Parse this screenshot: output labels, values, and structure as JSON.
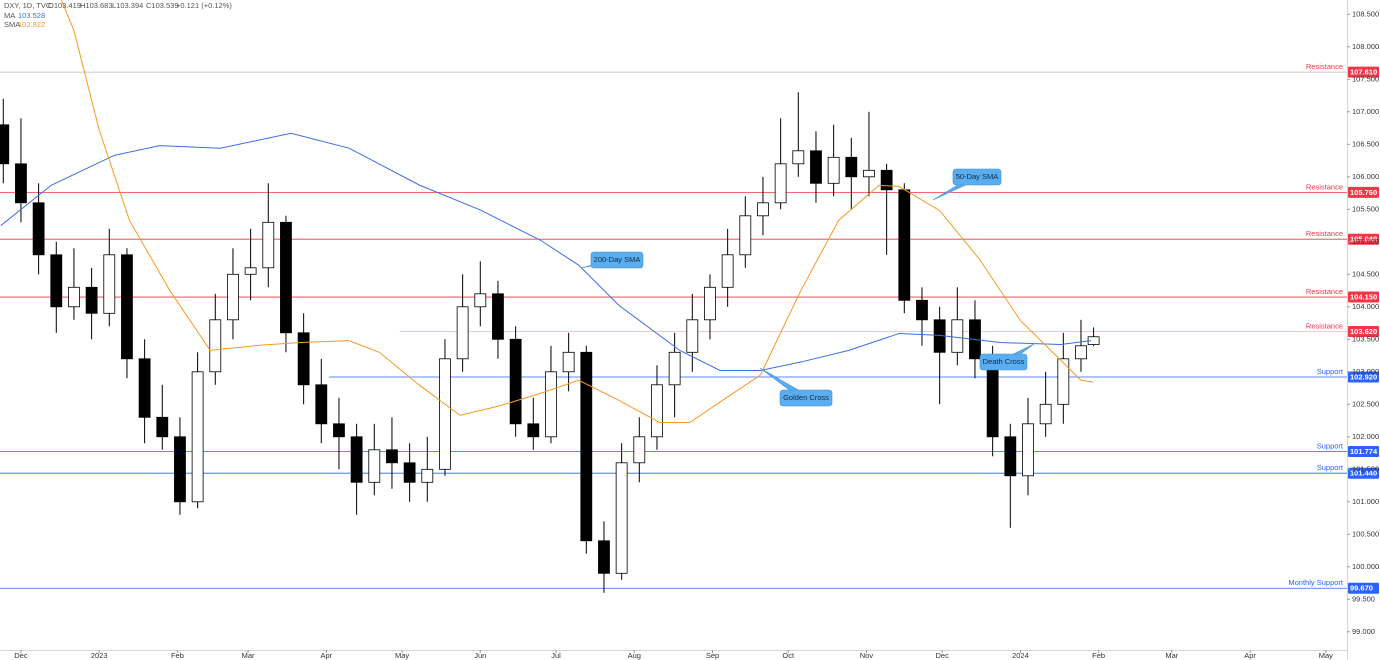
{
  "chart_data": {
    "type": "candlestick",
    "header": {
      "symbol": "DXY, 1D, TVC",
      "open": "O103.419",
      "high": "H103.683",
      "low": "L103.394",
      "close": "C103.539",
      "change": "+0.121 (+0.12%)"
    },
    "xlim": [
      -8.3,
      525.4
    ],
    "ylim": [
      98.72,
      108.72
    ],
    "xticks": [
      {
        "value": 0,
        "label": "Dec"
      },
      {
        "value": 31,
        "label": "2023"
      },
      {
        "value": 62,
        "label": "Feb"
      },
      {
        "value": 90,
        "label": "Mar"
      },
      {
        "value": 121,
        "label": "Apr"
      },
      {
        "value": 151,
        "label": "May"
      },
      {
        "value": 182,
        "label": "Jun"
      },
      {
        "value": 212,
        "label": "Jul"
      },
      {
        "value": 243,
        "label": "Aug"
      },
      {
        "value": 274,
        "label": "Sep"
      },
      {
        "value": 304,
        "label": "Oct"
      },
      {
        "value": 335,
        "label": "Nov"
      },
      {
        "value": 365,
        "label": "Dec"
      },
      {
        "value": 396,
        "label": "2024"
      },
      {
        "value": 427,
        "label": "Feb"
      },
      {
        "value": 456,
        "label": "Mar"
      },
      {
        "value": 487,
        "label": "Apr"
      },
      {
        "value": 517,
        "label": "May"
      }
    ],
    "yticks": [
      {
        "value": 99,
        "label": "99.000"
      },
      {
        "value": 99.5,
        "label": "99.500"
      },
      {
        "value": 100,
        "label": "100.000"
      },
      {
        "value": 100.5,
        "label": "100.500"
      },
      {
        "value": 101,
        "label": "101.000"
      },
      {
        "value": 101.5,
        "label": "101.500"
      },
      {
        "value": 102,
        "label": "102.000"
      },
      {
        "value": 102.5,
        "label": "102.500"
      },
      {
        "value": 103,
        "label": "103.000"
      },
      {
        "value": 103.5,
        "label": "103.500"
      },
      {
        "value": 104,
        "label": "104.000"
      },
      {
        "value": 104.5,
        "label": "104.500"
      },
      {
        "value": 105,
        "label": "105.000"
      },
      {
        "value": 105.5,
        "label": "105.500"
      },
      {
        "value": 106,
        "label": "106.000"
      },
      {
        "value": 106.5,
        "label": "106.500"
      },
      {
        "value": 107,
        "label": "107.000"
      },
      {
        "value": 107.5,
        "label": "107.500"
      },
      {
        "value": 108,
        "label": "108.000"
      },
      {
        "value": 108.5,
        "label": "108.500"
      }
    ],
    "candles": {
      "x": [
        -7,
        0,
        7,
        14,
        21,
        28,
        35,
        42,
        49,
        56,
        63,
        70,
        77,
        84,
        91,
        98,
        105,
        112,
        119,
        126,
        133,
        140,
        147,
        154,
        161,
        168,
        175,
        182,
        189,
        196,
        203,
        210,
        217,
        224,
        231,
        238,
        245,
        252,
        259,
        266,
        273,
        280,
        287,
        294,
        301,
        308,
        315,
        322,
        329,
        336,
        343,
        350,
        357,
        364,
        371,
        378,
        385,
        392,
        399,
        406,
        413,
        420,
        425
      ],
      "open": [
        106.8,
        106.2,
        105.6,
        104.8,
        104.0,
        104.3,
        103.9,
        104.8,
        103.2,
        102.3,
        102.0,
        101.0,
        103.0,
        103.8,
        104.5,
        104.6,
        105.3,
        103.6,
        102.8,
        102.2,
        102.0,
        101.3,
        101.8,
        101.6,
        101.3,
        101.5,
        103.2,
        104.0,
        104.2,
        103.5,
        102.2,
        102.0,
        103.0,
        103.3,
        100.4,
        99.9,
        101.6,
        102.0,
        102.8,
        103.3,
        103.8,
        104.3,
        104.8,
        105.4,
        105.6,
        106.2,
        106.4,
        105.9,
        106.3,
        106.0,
        106.1,
        105.8,
        104.1,
        103.8,
        103.3,
        103.8,
        103.2,
        102.0,
        101.4,
        102.2,
        102.5,
        103.2,
        103.419
      ],
      "high": [
        107.2,
        106.9,
        105.9,
        105.0,
        104.9,
        104.6,
        105.2,
        104.9,
        103.5,
        102.8,
        102.3,
        103.3,
        104.2,
        104.9,
        105.2,
        105.9,
        105.4,
        103.9,
        103.2,
        102.6,
        102.2,
        102.2,
        102.3,
        101.9,
        102.0,
        103.5,
        104.5,
        104.7,
        104.4,
        103.7,
        102.6,
        103.4,
        103.6,
        103.4,
        100.7,
        101.9,
        102.3,
        103.1,
        103.6,
        104.2,
        104.5,
        105.2,
        105.7,
        106.0,
        106.9,
        107.3,
        106.7,
        106.8,
        106.6,
        107.0,
        106.2,
        105.9,
        104.3,
        104.0,
        104.3,
        104.1,
        103.4,
        102.2,
        102.6,
        103.0,
        103.6,
        103.8,
        103.683
      ],
      "low": [
        105.9,
        105.3,
        104.5,
        103.6,
        103.8,
        103.5,
        103.7,
        102.9,
        101.9,
        101.8,
        100.8,
        100.9,
        102.8,
        103.5,
        104.1,
        104.3,
        103.3,
        102.5,
        101.9,
        101.5,
        100.8,
        101.1,
        101.2,
        101.0,
        101.0,
        101.4,
        103.0,
        103.7,
        103.2,
        102.0,
        101.8,
        101.9,
        102.7,
        100.2,
        99.6,
        99.8,
        101.3,
        101.8,
        102.3,
        103.0,
        103.5,
        104.0,
        104.6,
        105.1,
        105.5,
        106.0,
        105.6,
        105.7,
        105.5,
        105.7,
        104.8,
        103.9,
        103.4,
        102.5,
        103.1,
        102.9,
        101.7,
        100.6,
        101.1,
        102.0,
        102.2,
        103.0,
        103.394
      ],
      "close": [
        106.2,
        105.6,
        104.8,
        104.0,
        104.3,
        103.9,
        104.8,
        103.2,
        102.3,
        102.0,
        101.0,
        103.0,
        103.8,
        104.5,
        104.6,
        105.3,
        103.6,
        102.8,
        102.2,
        102.0,
        101.3,
        101.8,
        101.6,
        101.3,
        101.5,
        103.2,
        104.0,
        104.2,
        103.5,
        102.2,
        102.0,
        103.0,
        103.3,
        100.4,
        99.9,
        101.6,
        102.0,
        102.8,
        103.3,
        103.8,
        104.3,
        104.8,
        105.4,
        105.6,
        106.2,
        106.4,
        105.9,
        106.3,
        106.0,
        106.1,
        105.8,
        104.1,
        103.8,
        103.3,
        103.8,
        103.2,
        102.0,
        101.4,
        102.2,
        102.5,
        103.2,
        103.4,
        103.539
      ],
      "up_color": "#ffffff",
      "down_color": "#000000",
      "edge_color": "#000000"
    },
    "series": [
      {
        "name": "MA",
        "value_label": "103.528",
        "color": "#3d6fe0",
        "x": [
          -8,
          12,
          37,
          55,
          79,
          107,
          130,
          158,
          182,
          206,
          221,
          237,
          261,
          277,
          293,
          309,
          328,
          348,
          364,
          388,
          412,
          424
        ],
        "values": [
          105.25,
          105.87,
          106.33,
          106.48,
          106.44,
          106.67,
          106.44,
          105.87,
          105.49,
          105.02,
          104.64,
          104.02,
          103.33,
          103.02,
          103.02,
          103.15,
          103.33,
          103.59,
          103.56,
          103.45,
          103.42,
          103.48
        ]
      },
      {
        "name": "SMA",
        "value_label": "102.822",
        "color": "#f59a23",
        "x": [
          16,
          21,
          31,
          43,
          59,
          75,
          95,
          111,
          130,
          142,
          158,
          174,
          190,
          206,
          221,
          237,
          253,
          265,
          281,
          293,
          309,
          324,
          340,
          348,
          364,
          380,
          396,
          408,
          420,
          425
        ],
        "values": [
          108.72,
          108.25,
          106.72,
          105.33,
          104.25,
          103.33,
          103.41,
          103.45,
          103.48,
          103.3,
          102.79,
          102.33,
          102.48,
          102.67,
          102.87,
          102.56,
          102.22,
          102.22,
          102.64,
          102.95,
          104.25,
          105.33,
          105.87,
          105.85,
          105.48,
          104.72,
          103.79,
          103.33,
          102.87,
          102.84
        ]
      }
    ],
    "levels": [
      {
        "label": "Resistance",
        "price": {
          "value": 107.61,
          "label": "107.610"
        },
        "color": "#f23645",
        "line_color": "#b8b8b8",
        "x_start": -8.3
      },
      {
        "label": "Resistance",
        "price": {
          "value": 105.76,
          "label": "105.760"
        },
        "color": "#f23645",
        "line_color": "#f23645",
        "x_start": -8.3
      },
      {
        "label": "Resistance",
        "price": {
          "value": 105.04,
          "label": "105.040"
        },
        "color": "#f23645",
        "line_color": "#f23645",
        "x_start": -8.3
      },
      {
        "label": "Resistance",
        "price": {
          "value": 104.15,
          "label": "104.150"
        },
        "color": "#f23645",
        "line_color": "#f23645",
        "x_start": -8.3
      },
      {
        "label": "Resistance",
        "price": {
          "value": 103.62,
          "label": "103.620"
        },
        "color": "#f23645",
        "line_color": "#f7b6bc",
        "x_start": 150
      },
      {
        "label": "Support",
        "price": {
          "value": 102.92,
          "label": "102.920"
        },
        "color": "#2962ff",
        "line_color": "#2962ff",
        "x_start": 122
      },
      {
        "label": "Support",
        "price": 101.774,
        "color": "#2962ff",
        "line_color": "#2962ff",
        "x_start": -8.3
      },
      {
        "label": "Support",
        "price": {
          "value": 101.44,
          "label": "101.440"
        },
        "color": "#2962ff",
        "line_color": "#2962ff",
        "x_start": -8.3
      },
      {
        "label": "Monthly Support",
        "price": {
          "value": 99.67,
          "label": "99.670"
        },
        "color": "#2962ff",
        "line_color": "#2962ff",
        "x_start": -8.3
      }
    ],
    "annotations": [
      "50-Day SMA",
      "200-Day SMA",
      "Golden Cross",
      "Death Cross"
    ]
  }
}
